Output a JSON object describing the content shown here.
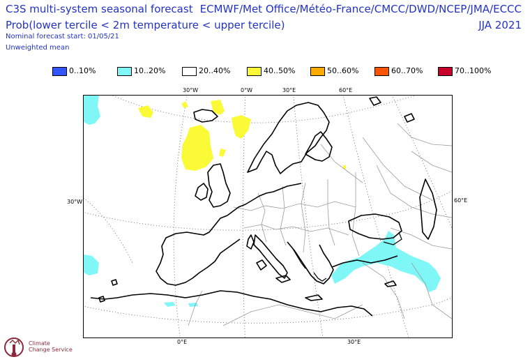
{
  "header": {
    "title": "C3S multi-system seasonal forecast",
    "subtitle": "Prob(lower tercile < 2m temperature < upper tercile)",
    "start": "Nominal forecast start: 01/05/21",
    "mean": "Unweighted mean",
    "centres": "ECMWF/Met Office/Météo-France/CMCC/DWD/NCEP/JMA/ECCC",
    "season": "JJA 2021"
  },
  "legend": [
    {
      "label": "0..10%",
      "color": "#3355ff"
    },
    {
      "label": "10..20%",
      "color": "#7ff7f7"
    },
    {
      "label": "20..40%",
      "color": "#ffffff"
    },
    {
      "label": "40..50%",
      "color": "#fafa37"
    },
    {
      "label": "50..60%",
      "color": "#ffab00"
    },
    {
      "label": "60..70%",
      "color": "#ff5500"
    },
    {
      "label": "70..100%",
      "color": "#c8002d"
    }
  ],
  "map": {
    "labels_top": [
      "30°W",
      "0°W",
      "30°E",
      "60°E"
    ],
    "label_left": "30°W",
    "label_right": "60°E",
    "labels_bottom": [
      "0°E",
      "30°E"
    ]
  },
  "logo": {
    "name_line1": "Climate",
    "name_line2": "Change Service"
  }
}
